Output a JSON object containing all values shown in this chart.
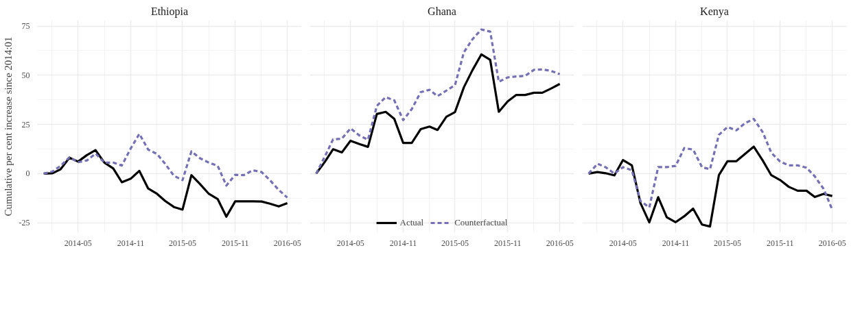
{
  "chart_data": [
    {
      "type": "line",
      "title": "Ethiopia",
      "ylabel": "Cumulative per cent increase since 2014:01",
      "x": [
        "2014-01",
        "2014-02",
        "2014-03",
        "2014-04",
        "2014-05",
        "2014-06",
        "2014-07",
        "2014-08",
        "2014-09",
        "2014-10",
        "2014-11",
        "2014-12",
        "2015-01",
        "2015-02",
        "2015-03",
        "2015-04",
        "2015-05",
        "2015-06",
        "2015-07",
        "2015-08",
        "2015-09",
        "2015-10",
        "2015-11",
        "2015-12",
        "2016-01",
        "2016-02",
        "2016-03",
        "2016-04",
        "2016-05"
      ],
      "series": [
        {
          "color": "#000000",
          "line_style": "solid",
          "values": [
            0,
            0.2,
            2.2,
            8.1,
            6.1,
            9.4,
            11.9,
            5.6,
            2.6,
            -4.4,
            -2.6,
            1.4,
            -7.6,
            -10.3,
            -13.9,
            -17,
            -18.3,
            -0.8,
            -5.3,
            -10.3,
            -13,
            -21.9,
            -14.1,
            -14.1,
            -14.1,
            -14.2,
            -15.3,
            -16.7,
            -15
          ]
        },
        {
          "color": "#7570b3",
          "line_style": "dashed",
          "values": [
            0,
            1.1,
            3.9,
            8.3,
            5.8,
            6.7,
            10.2,
            5.6,
            5.6,
            4.1,
            12.8,
            20.2,
            12.2,
            10,
            5,
            -1.1,
            -3.3,
            11.3,
            7.8,
            5.6,
            3.9,
            -6.1,
            -0.6,
            -0.8,
            1.7,
            0.8,
            -3.3,
            -8.3,
            -12.2
          ]
        }
      ],
      "xlim": [
        "2013-12-10",
        "2016-06-20"
      ],
      "xticks": [
        "2014-05",
        "2014-11",
        "2015-05",
        "2015-11",
        "2016-05"
      ],
      "ylim": [
        -30,
        78
      ],
      "yticks": [
        -25,
        0,
        25,
        50,
        75
      ],
      "grid": true
    },
    {
      "type": "line",
      "title": "Ghana",
      "x": [
        "2014-01",
        "2014-02",
        "2014-03",
        "2014-04",
        "2014-05",
        "2014-06",
        "2014-07",
        "2014-08",
        "2014-09",
        "2014-10",
        "2014-11",
        "2014-12",
        "2015-01",
        "2015-02",
        "2015-03",
        "2015-04",
        "2015-05",
        "2015-06",
        "2015-07",
        "2015-08",
        "2015-09",
        "2015-10",
        "2015-11",
        "2015-12",
        "2016-01",
        "2016-02",
        "2016-03",
        "2016-04",
        "2016-05"
      ],
      "series": [
        {
          "name": "Actual",
          "color": "#000000",
          "line_style": "solid",
          "values": [
            0,
            6.1,
            12.4,
            10.8,
            16.7,
            15,
            13.6,
            30.3,
            31.4,
            27.8,
            15.6,
            15.6,
            22.6,
            23.9,
            22.2,
            28.9,
            31.3,
            43.9,
            52.6,
            60.6,
            57.8,
            31.4,
            36.7,
            40,
            40,
            41.1,
            41.1,
            43.3,
            45.6
          ]
        },
        {
          "name": "Counterfactual",
          "color": "#7570b3",
          "line_style": "dashed",
          "values": [
            0,
            8.9,
            17.4,
            17.8,
            23,
            19.4,
            17.2,
            34.4,
            38.9,
            37.2,
            27.2,
            32.8,
            41.4,
            42.6,
            39.4,
            42.2,
            45,
            61.7,
            68.3,
            73.3,
            72.2,
            46.7,
            48.9,
            49.4,
            49.7,
            52.8,
            53,
            52.2,
            50.6
          ]
        }
      ],
      "xlim": [
        "2013-12-10",
        "2016-06-20"
      ],
      "xticks": [
        "2014-05",
        "2014-11",
        "2015-05",
        "2015-11",
        "2016-05"
      ],
      "ylim": [
        -30,
        78
      ],
      "yticks": [
        -25,
        0,
        25,
        50,
        75
      ],
      "tick_labels": "x",
      "grid": true,
      "legend": "bottom"
    },
    {
      "type": "line",
      "title": "Kenya",
      "x": [
        "2014-01",
        "2014-02",
        "2014-03",
        "2014-04",
        "2014-05",
        "2014-06",
        "2014-07",
        "2014-08",
        "2014-09",
        "2014-10",
        "2014-11",
        "2014-12",
        "2015-01",
        "2015-02",
        "2015-03",
        "2015-04",
        "2015-05",
        "2015-06",
        "2015-07",
        "2015-08",
        "2015-09",
        "2015-10",
        "2015-11",
        "2015-12",
        "2016-01",
        "2016-02",
        "2016-03",
        "2016-04",
        "2016-05"
      ],
      "series": [
        {
          "color": "#000000",
          "line_style": "solid",
          "values": [
            0,
            0.8,
            0.2,
            -0.9,
            6.9,
            4.2,
            -15,
            -24.8,
            -12,
            -22.2,
            -24.7,
            -21.7,
            -17.8,
            -25.9,
            -26.9,
            -0.8,
            6.3,
            6.3,
            10,
            13.7,
            6.7,
            -0.8,
            -3.3,
            -6.7,
            -8.7,
            -8.7,
            -11.9,
            -10.3,
            -11.4
          ]
        },
        {
          "color": "#7570b3",
          "line_style": "dashed",
          "values": [
            0,
            5,
            3.3,
            0,
            3.3,
            1.7,
            -13.9,
            -17.2,
            3.3,
            3.3,
            3.9,
            13,
            12.2,
            3.3,
            2.2,
            19.7,
            23.7,
            22,
            25.6,
            27.8,
            21.1,
            10.6,
            6.1,
            4.2,
            4.2,
            3,
            -1.4,
            -7.8,
            -18.3
          ]
        }
      ],
      "xlim": [
        "2013-12-10",
        "2016-06-20"
      ],
      "xticks": [
        "2014-05",
        "2014-11",
        "2015-05",
        "2015-11",
        "2016-05"
      ],
      "ylim": [
        -30,
        78
      ],
      "yticks": [
        -25,
        0,
        25,
        50,
        75
      ],
      "tick_labels": "x",
      "grid": true
    }
  ]
}
